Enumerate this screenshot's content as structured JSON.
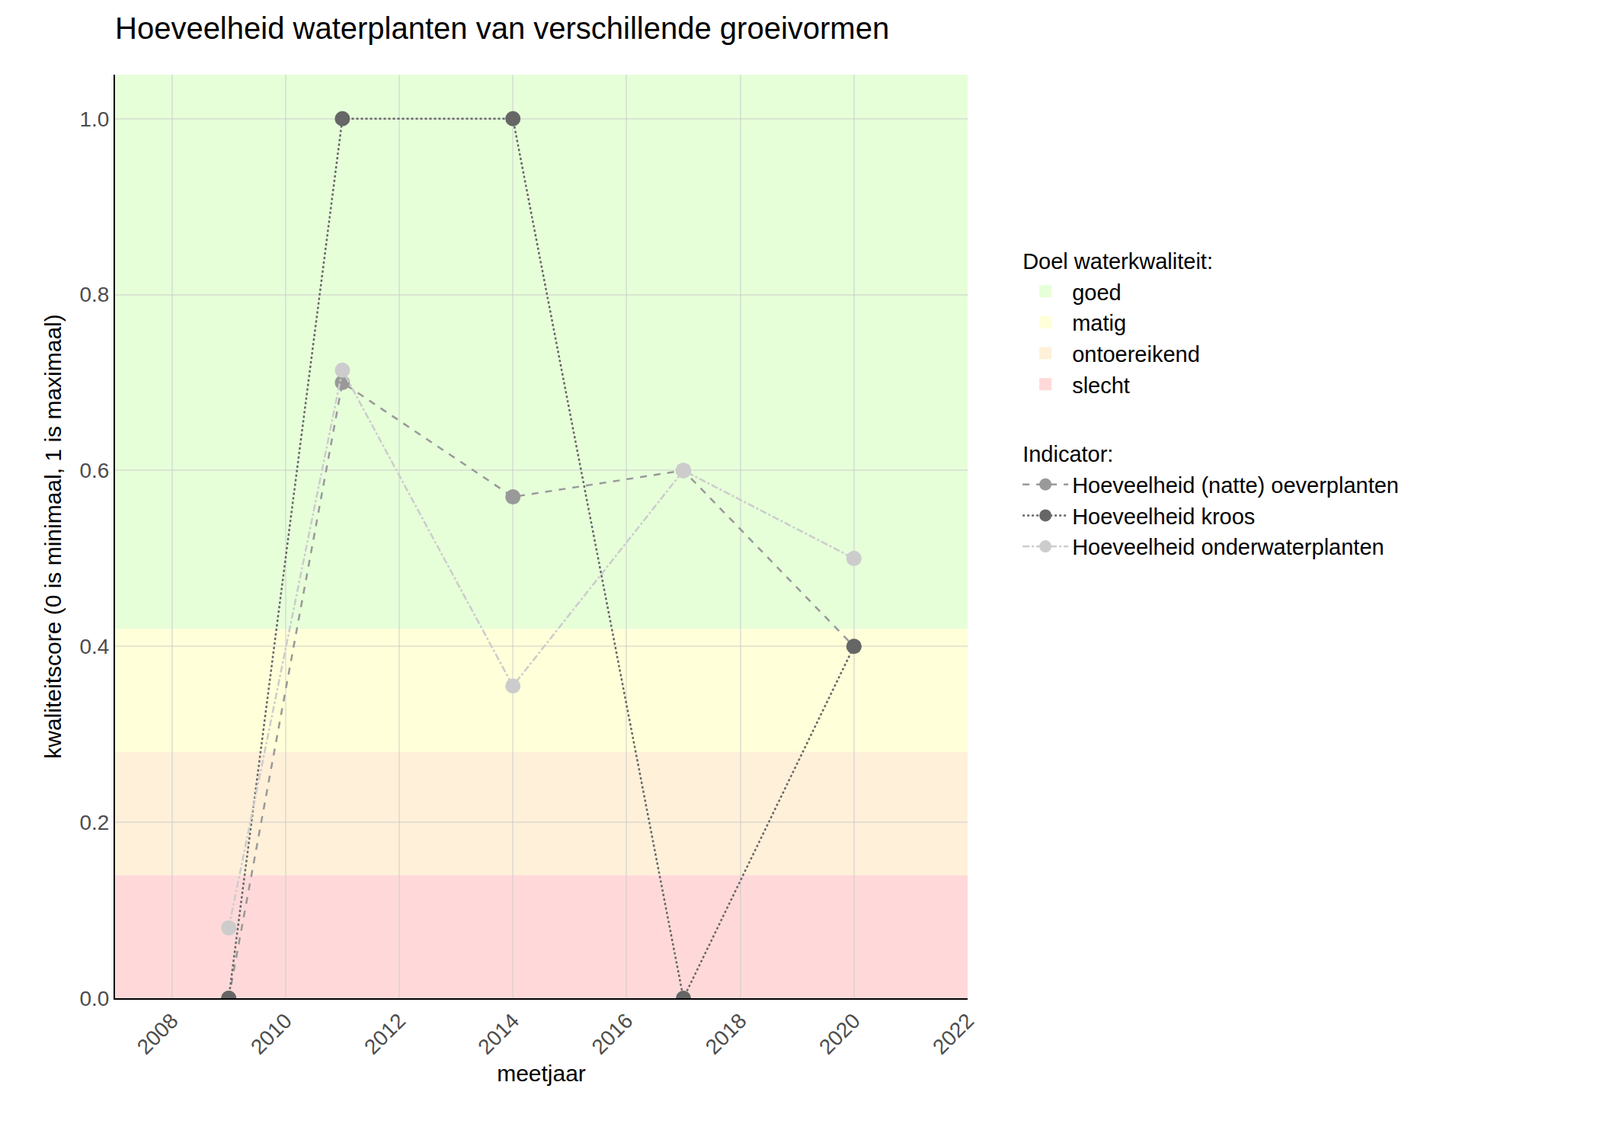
{
  "chart_data": {
    "type": "line",
    "title": "Hoeveelheid waterplanten van verschillende groeivormen",
    "x_label": "meetjaar",
    "y_label": "kwaliteitscore (0 is minimaal, 1 is maximaal)",
    "x": [
      2009,
      2011,
      2014,
      2017,
      2020
    ],
    "series_title": "Indicator:",
    "series": [
      {
        "name": "Hoeveelheid (natte) oeverplanten",
        "color": "#999999",
        "line_style": "dash",
        "marker": "circle",
        "values": [
          0,
          0.7,
          0.57,
          0.6,
          0.4
        ]
      },
      {
        "name": "Hoeveelheid kroos",
        "color": "#666666",
        "line_style": "dot",
        "marker": "circle",
        "values": [
          0,
          1.0,
          1.0,
          0,
          0.4
        ]
      },
      {
        "name": "Hoeveelheid onderwaterplanten",
        "color": "#cccccc",
        "line_style": "dashdot",
        "marker": "circle",
        "values": [
          0.08,
          0.714,
          0.355,
          0.6,
          0.5
        ]
      }
    ],
    "bands_title": "Doel waterkwaliteit:",
    "bands": [
      {
        "name": "goed",
        "color": "#e6ffd9",
        "from": 0.42,
        "to": 1.05
      },
      {
        "name": "matig",
        "color": "#ffffd9",
        "from": 0.28,
        "to": 0.42
      },
      {
        "name": "ontoereikend",
        "color": "#fff0d9",
        "from": 0.14,
        "to": 0.28
      },
      {
        "name": "slecht",
        "color": "#ffd9d9",
        "from": 0,
        "to": 0.14
      }
    ],
    "xlim": [
      2007,
      2022
    ],
    "xticks": [
      2008,
      2010,
      2012,
      2014,
      2016,
      2018,
      2020,
      2022
    ],
    "ylim": [
      0,
      1.05
    ],
    "yticks": [
      {
        "value": 0,
        "label": "0.0"
      },
      {
        "value": 0.2,
        "label": "0.2"
      },
      {
        "value": 0.4,
        "label": "0.4"
      },
      {
        "value": 0.6,
        "label": "0.6"
      },
      {
        "value": 0.8,
        "label": "0.8"
      },
      {
        "value": 1.0,
        "label": "1.0"
      }
    ],
    "grid": true,
    "legend": "right"
  }
}
